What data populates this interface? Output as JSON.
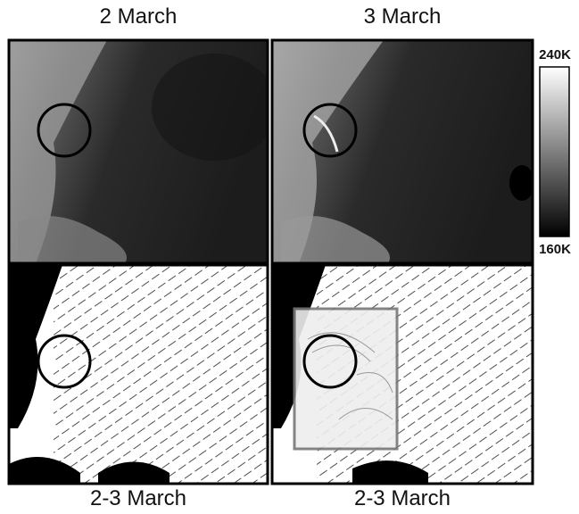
{
  "panels": [
    {
      "title": "2 March"
    },
    {
      "title": "3 March"
    },
    {
      "title": "2-3 March"
    },
    {
      "title": "2-3 March"
    }
  ],
  "colorbar": {
    "max_label": "240K",
    "min_label": "160K"
  }
}
